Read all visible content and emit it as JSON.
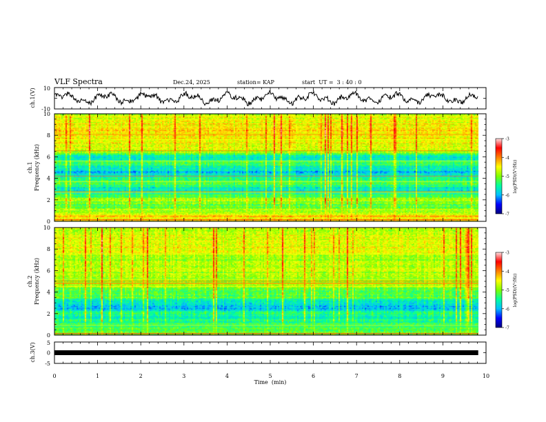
{
  "header": {
    "title": "VLF Spectra",
    "date": "Dec.24, 2025",
    "station": "station= KAP",
    "start": "start  UT =  3 : 40 : 0"
  },
  "chart_data": {
    "type": "heatmap",
    "xlabel": "Time  (min)",
    "xlim": [
      0,
      10
    ],
    "xticks": [
      "0",
      "1",
      "2",
      "3",
      "4",
      "5",
      "6",
      "7",
      "8",
      "9",
      "10"
    ],
    "data_end_min": 9.82,
    "panels": [
      {
        "id": "ch1-waveform",
        "type": "line",
        "ylabel": "ch.1(V)",
        "ylim": [
          -10,
          10
        ],
        "yticks": [
          "10",
          "-10"
        ]
      },
      {
        "id": "ch1-spectrogram",
        "type": "heatmap",
        "ylabel_top": "ch.1",
        "ylabel": "Frequency  (kHz)",
        "ylim": [
          0,
          10
        ],
        "yticks": [
          "0",
          "2",
          "4",
          "6",
          "8",
          "10"
        ],
        "colorbar": {
          "label": "log(PSD)(V²/Hz)",
          "range": [
            -7,
            -3
          ],
          "ticks": [
            "-3",
            "-4",
            "-5",
            "-6",
            "-7"
          ],
          "colors": [
            "#00007f",
            "#0000ff",
            "#00bfff",
            "#00ff9f",
            "#7fff00",
            "#ffff00",
            "#ff7f00",
            "#ff0000",
            "#ffe0e0"
          ]
        },
        "band_profile_log_psd": [
          {
            "khz": 0.0,
            "v": -4.6
          },
          {
            "khz": 0.5,
            "v": -4.4
          },
          {
            "khz": 1.0,
            "v": -4.9
          },
          {
            "khz": 1.5,
            "v": -5.2
          },
          {
            "khz": 2.0,
            "v": -4.8
          },
          {
            "khz": 2.5,
            "v": -5.4
          },
          {
            "khz": 3.0,
            "v": -5.7
          },
          {
            "khz": 3.5,
            "v": -5.3
          },
          {
            "khz": 4.0,
            "v": -5.5
          },
          {
            "khz": 4.5,
            "v": -5.9
          },
          {
            "khz": 5.0,
            "v": -5.6
          },
          {
            "khz": 5.5,
            "v": -5.3
          },
          {
            "khz": 6.0,
            "v": -5.8
          },
          {
            "khz": 6.5,
            "v": -4.8
          },
          {
            "khz": 7.0,
            "v": -4.6
          },
          {
            "khz": 7.5,
            "v": -4.5
          },
          {
            "khz": 8.0,
            "v": -4.4
          },
          {
            "khz": 8.5,
            "v": -4.5
          },
          {
            "khz": 9.0,
            "v": -4.5
          },
          {
            "khz": 9.5,
            "v": -4.6
          },
          {
            "khz": 10.0,
            "v": -4.7
          }
        ]
      },
      {
        "id": "ch2-spectrogram",
        "type": "heatmap",
        "ylabel_top": "ch.2",
        "ylabel": "Frequency  (kHz)",
        "ylim": [
          0,
          10
        ],
        "yticks": [
          "0",
          "2",
          "4",
          "6",
          "8",
          "10"
        ],
        "colorbar": {
          "label": "log(PSD)(V²/Hz)",
          "range": [
            -7,
            -3
          ],
          "ticks": [
            "-3",
            "-4",
            "-5",
            "-6",
            "-7"
          ],
          "colors": [
            "#00007f",
            "#0000ff",
            "#00bfff",
            "#00ff9f",
            "#7fff00",
            "#ffff00",
            "#ff7f00",
            "#ff0000",
            "#ffe0e0"
          ]
        },
        "band_profile_log_psd": [
          {
            "khz": 0.0,
            "v": -5.0
          },
          {
            "khz": 0.5,
            "v": -5.2
          },
          {
            "khz": 1.0,
            "v": -5.4
          },
          {
            "khz": 1.5,
            "v": -5.6
          },
          {
            "khz": 2.0,
            "v": -5.3
          },
          {
            "khz": 2.5,
            "v": -5.9
          },
          {
            "khz": 3.0,
            "v": -5.8
          },
          {
            "khz": 3.5,
            "v": -5.2
          },
          {
            "khz": 4.0,
            "v": -5.2
          },
          {
            "khz": 4.5,
            "v": -4.9
          },
          {
            "khz": 5.0,
            "v": -4.9
          },
          {
            "khz": 5.5,
            "v": -4.9
          },
          {
            "khz": 6.0,
            "v": -4.8
          },
          {
            "khz": 6.5,
            "v": -4.8
          },
          {
            "khz": 7.0,
            "v": -4.8
          },
          {
            "khz": 7.5,
            "v": -4.7
          },
          {
            "khz": 8.0,
            "v": -4.6
          },
          {
            "khz": 8.5,
            "v": -4.6
          },
          {
            "khz": 9.0,
            "v": -4.6
          },
          {
            "khz": 9.5,
            "v": -4.7
          },
          {
            "khz": 10.0,
            "v": -4.8
          }
        ]
      },
      {
        "id": "ch3-waveform",
        "type": "line",
        "ylabel": "ch.3(V)",
        "ylim": [
          -5,
          5
        ],
        "yticks": [
          "5",
          "0",
          "-5"
        ],
        "trace_level_v": 0
      }
    ]
  }
}
